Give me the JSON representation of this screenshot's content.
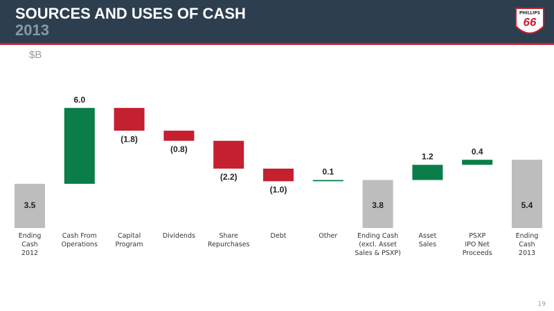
{
  "header": {
    "title": "SOURCES AND USES OF CASH",
    "subtitle": "2013",
    "logo_top": "PHILLIPS",
    "logo_number": "66"
  },
  "page_number": "19",
  "chart_data": {
    "type": "waterfall",
    "unit_label": "$B",
    "categories": [
      "Ending\nCash\n2012",
      "Cash From\nOperations",
      "Capital\nProgram",
      "Dividends",
      "Share\nRepurchases",
      "Debt",
      "Other",
      "Ending Cash\n(excl. Asset\nSales & PSXP)",
      "Asset\nSales",
      "PSXP\nIPO Net\nProceeds",
      "Ending\nCash\n2013"
    ],
    "values": [
      3.5,
      6.0,
      -1.8,
      -0.8,
      -2.2,
      -1.0,
      0.1,
      3.8,
      1.2,
      0.4,
      5.4
    ],
    "value_labels": [
      "3.5",
      "6.0",
      "(1.8)",
      "(0.8)",
      "(2.2)",
      "(1.0)",
      "0.1",
      "3.8",
      "1.2",
      "0.4",
      "5.4"
    ],
    "bar_kinds": [
      "total",
      "delta",
      "delta",
      "delta",
      "delta",
      "delta",
      "delta",
      "total",
      "delta",
      "delta",
      "total"
    ],
    "colors": {
      "total": "#bdbdbd",
      "increase": "#0a7d48",
      "decrease": "#c4202f"
    }
  }
}
